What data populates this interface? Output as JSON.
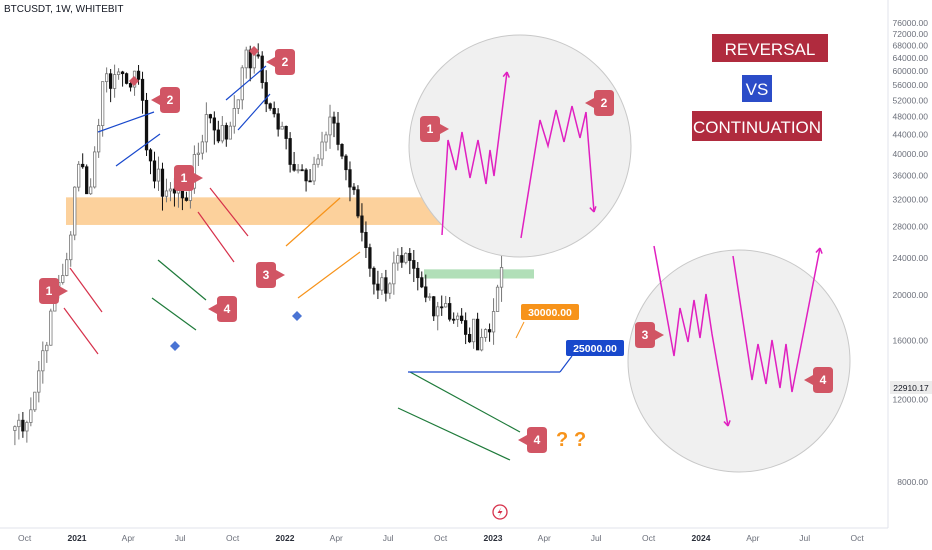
{
  "title": "BTCUSDT, 1W, WHITEBIT",
  "colors": {
    "up": "#777777",
    "down": "#111111",
    "accent_red": "#c0303f",
    "bubble_red": "#d15564",
    "magenta": "#e020c0",
    "orange_zone": "#fbc98b",
    "orange_label": "#f7931a",
    "blue_label": "#1848cc",
    "green_zone": "#a8dcb0",
    "banner_red": "#b02b3e",
    "banner_blue": "#2b4cc8"
  },
  "chart_data": {
    "type": "candlestick",
    "title": "BTCUSDT, 1W, WHITEBIT",
    "y_scale": "log",
    "ylim": [
      7000,
      78000
    ],
    "y_ticks": [
      {
        "value": 8000,
        "label": "8000.00"
      },
      {
        "value": 12000,
        "label": "12000.00"
      },
      {
        "value": 16000,
        "label": "16000.00"
      },
      {
        "value": 20000,
        "label": "20000.00"
      },
      {
        "value": 24000,
        "label": "24000.00"
      },
      {
        "value": 28000,
        "label": "28000.00"
      },
      {
        "value": 32000,
        "label": "32000.00"
      },
      {
        "value": 36000,
        "label": "36000.00"
      },
      {
        "value": 40000,
        "label": "40000.00"
      },
      {
        "value": 44000,
        "label": "44000.00"
      },
      {
        "value": 48000,
        "label": "48000.00"
      },
      {
        "value": 52000,
        "label": "52000.00"
      },
      {
        "value": 56000,
        "label": "56000.00"
      },
      {
        "value": 60000,
        "label": "60000.00"
      },
      {
        "value": 64000,
        "label": "64000.00"
      },
      {
        "value": 68000,
        "label": "68000.00"
      },
      {
        "value": 72000,
        "label": "72000.00"
      },
      {
        "value": 76000,
        "label": "76000.00"
      }
    ],
    "x_ticks": [
      {
        "date": "2020-10-01",
        "label": "Oct",
        "bold": false
      },
      {
        "date": "2021-01-01",
        "label": "2021",
        "bold": true
      },
      {
        "date": "2021-04-01",
        "label": "Apr",
        "bold": false
      },
      {
        "date": "2021-07-01",
        "label": "Jul",
        "bold": false
      },
      {
        "date": "2021-10-01",
        "label": "Oct",
        "bold": false
      },
      {
        "date": "2022-01-01",
        "label": "2022",
        "bold": true
      },
      {
        "date": "2022-04-01",
        "label": "Apr",
        "bold": false
      },
      {
        "date": "2022-07-01",
        "label": "Jul",
        "bold": false
      },
      {
        "date": "2022-10-01",
        "label": "Oct",
        "bold": false
      },
      {
        "date": "2023-01-01",
        "label": "2023",
        "bold": true
      },
      {
        "date": "2023-04-01",
        "label": "Apr",
        "bold": false
      },
      {
        "date": "2023-07-01",
        "label": "Jul",
        "bold": false
      },
      {
        "date": "2023-10-01",
        "label": "Oct",
        "bold": false
      },
      {
        "date": "2024-01-01",
        "label": "2024",
        "bold": true
      },
      {
        "date": "2024-04-01",
        "label": "Apr",
        "bold": false
      },
      {
        "date": "2024-07-01",
        "label": "Jul",
        "bold": false
      },
      {
        "date": "2024-10-01",
        "label": "Oct",
        "bold": false
      }
    ],
    "weekly_close": [
      {
        "date": "2020-09-07",
        "close": 10300
      },
      {
        "date": "2020-10-12",
        "close": 11400
      },
      {
        "date": "2020-10-26",
        "close": 13800
      },
      {
        "date": "2020-11-16",
        "close": 18500
      },
      {
        "date": "2020-12-14",
        "close": 23800
      },
      {
        "date": "2021-01-04",
        "close": 38000
      },
      {
        "date": "2021-01-25",
        "close": 34000
      },
      {
        "date": "2021-02-15",
        "close": 57000
      },
      {
        "date": "2021-03-08",
        "close": 59000
      },
      {
        "date": "2021-04-12",
        "close": 60000
      },
      {
        "date": "2021-05-17",
        "close": 35000
      },
      {
        "date": "2021-06-21",
        "close": 33000
      },
      {
        "date": "2021-07-19",
        "close": 33800
      },
      {
        "date": "2021-08-16",
        "close": 48500
      },
      {
        "date": "2021-09-20",
        "close": 43000
      },
      {
        "date": "2021-10-18",
        "close": 61000
      },
      {
        "date": "2021-11-08",
        "close": 65000
      },
      {
        "date": "2021-12-06",
        "close": 50000
      },
      {
        "date": "2022-01-24",
        "close": 37000
      },
      {
        "date": "2022-02-21",
        "close": 38000
      },
      {
        "date": "2022-03-28",
        "close": 46500
      },
      {
        "date": "2022-05-09",
        "close": 29500
      },
      {
        "date": "2022-06-13",
        "close": 20500
      },
      {
        "date": "2022-07-25",
        "close": 23500
      },
      {
        "date": "2022-09-05",
        "close": 19800
      },
      {
        "date": "2022-10-10",
        "close": 19200
      },
      {
        "date": "2022-11-14",
        "close": 16500
      },
      {
        "date": "2022-12-26",
        "close": 16700
      },
      {
        "date": "2023-01-09",
        "close": 20800
      },
      {
        "date": "2023-01-16",
        "close": 22910
      }
    ],
    "annotations": {
      "current_price": {
        "value": 22910.17,
        "label": "22910.17"
      },
      "price_labels": [
        {
          "value": 30000,
          "label": "30000.00"
        },
        {
          "value": 25000,
          "label": "25000.00"
        }
      ],
      "pattern_numbers": [
        "1",
        "2",
        "1",
        "2",
        "3",
        "4",
        "4",
        "1",
        "2",
        "3",
        "4"
      ],
      "question_marks": "? ?"
    }
  },
  "banner": {
    "line1": "REVERSAL",
    "line2": "VS",
    "line3": "CONTINUATION"
  },
  "bubbles": {
    "b1": "1",
    "b2": "2",
    "b3": "1",
    "b4": "2",
    "b5": "3",
    "b6": "4",
    "b7": "4",
    "d1": "1",
    "d2": "2",
    "d3": "3",
    "d4": "4"
  },
  "qmarks": {
    "q1": "?",
    "q2": "?"
  },
  "labels": {
    "l30000": "30000.00",
    "l25000": "25000.00",
    "current": "22910.17"
  }
}
